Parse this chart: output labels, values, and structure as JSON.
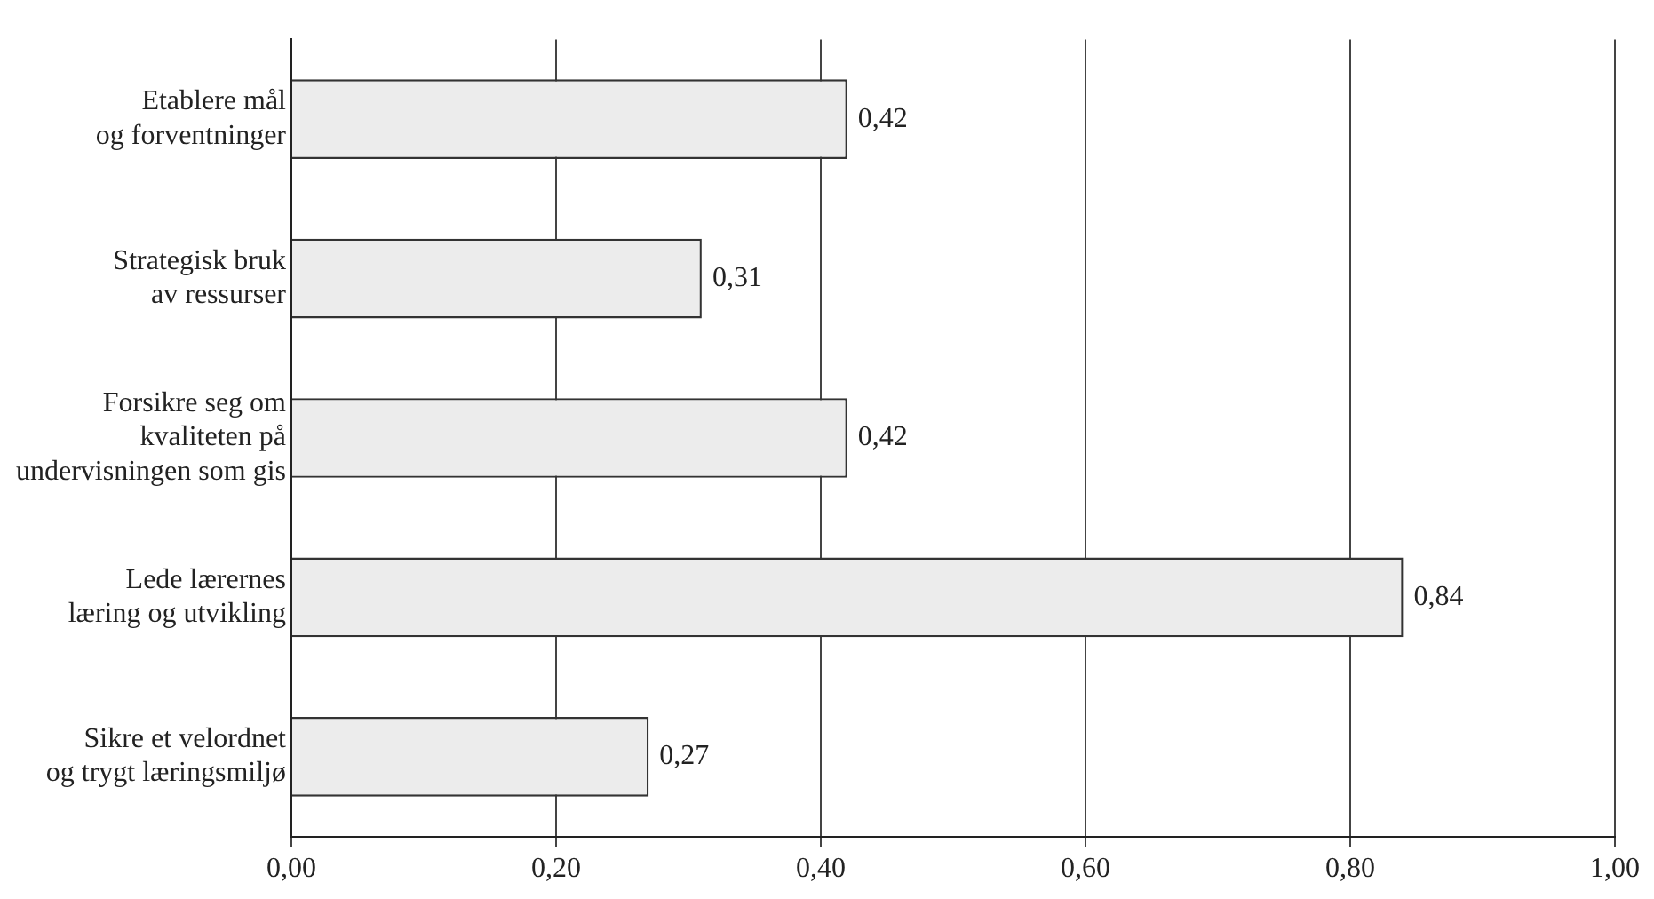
{
  "chart_data": {
    "type": "bar",
    "orientation": "horizontal",
    "categories": [
      "Etablere mål\nog forventninger",
      "Strategisk bruk\nav ressurser",
      "Forsikre seg om\nkvaliteten på\nundervisningen som gis",
      "Lede lærernes\nlæring og utvikling",
      "Sikre et velordnet\nog trygt læringsmiljø"
    ],
    "values": [
      0.42,
      0.31,
      0.42,
      0.84,
      0.27
    ],
    "value_labels": [
      "0,42",
      "0,31",
      "0,42",
      "0,84",
      "0,27"
    ],
    "color": "#ececec",
    "xlim": [
      0,
      1
    ],
    "xticks": [
      {
        "value": 0,
        "label": "0,00"
      },
      {
        "value": 0.2,
        "label": "0,20"
      },
      {
        "value": 0.4,
        "label": "0,40"
      },
      {
        "value": 0.6,
        "label": "0,60"
      },
      {
        "value": 0.8,
        "label": "0,80"
      },
      {
        "value": 1,
        "label": "1,00"
      }
    ],
    "grid": "x"
  }
}
